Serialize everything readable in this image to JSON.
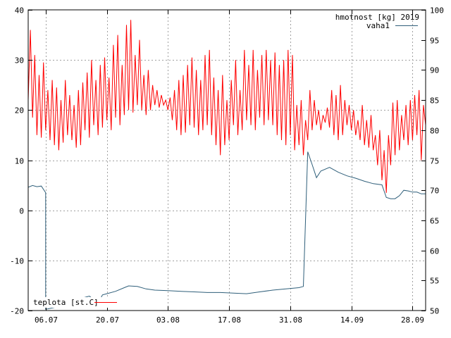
{
  "chart_data": {
    "type": "line",
    "title": "hmotnost [kg] 2019",
    "xlabel": "",
    "ylabel": "",
    "ylim": [
      -20,
      40
    ],
    "y2lim": [
      50,
      100
    ],
    "xlim": [
      "2019-07-02",
      "2019-10-01"
    ],
    "grid": true,
    "legend": [
      "top-right",
      "bottom-left"
    ],
    "colors": {
      "teplota": "#ff0000",
      "vaha1": "#2f5f7a",
      "grid": "#a0a0a0",
      "frame": "#000000"
    },
    "x_ticks": [
      {
        "date": "2019-07-06",
        "label": "06.07"
      },
      {
        "date": "2019-07-20",
        "label": "20.07"
      },
      {
        "date": "2019-08-03",
        "label": "03.08"
      },
      {
        "date": "2019-08-17",
        "label": "17.08"
      },
      {
        "date": "2019-08-31",
        "label": "31.08"
      },
      {
        "date": "2019-09-14",
        "label": "14.09"
      },
      {
        "date": "2019-09-28",
        "label": "28.09"
      }
    ],
    "y_ticks": [
      {
        "value": -20,
        "label": "-20"
      },
      {
        "value": -10,
        "label": "-10"
      },
      {
        "value": 0,
        "label": "0"
      },
      {
        "value": 10,
        "label": "10"
      },
      {
        "value": 20,
        "label": "20"
      },
      {
        "value": 30,
        "label": "30"
      },
      {
        "value": 40,
        "label": "40"
      }
    ],
    "y2_ticks": [
      {
        "value": 50,
        "label": "50"
      },
      {
        "value": 55,
        "label": "55"
      },
      {
        "value": 60,
        "label": "60"
      },
      {
        "value": 65,
        "label": "65"
      },
      {
        "value": 70,
        "label": "70"
      },
      {
        "value": 75,
        "label": "75"
      },
      {
        "value": 80,
        "label": "80"
      },
      {
        "value": 85,
        "label": "85"
      },
      {
        "value": 90,
        "label": "90"
      },
      {
        "value": 95,
        "label": "95"
      },
      {
        "value": 100,
        "label": "100"
      }
    ],
    "series": [
      {
        "name": "vaha1",
        "axis": "right",
        "points": [
          [
            "2019-07-02",
            70.5
          ],
          [
            "2019-07-03",
            70.8
          ],
          [
            "2019-07-04",
            70.6
          ],
          [
            "2019-07-05",
            70.7
          ],
          [
            "2019-07-06",
            69.6
          ],
          [
            "2019-07-06",
            50.2
          ],
          [
            "2019-07-08",
            50.5
          ],
          [
            "2019-07-10",
            51.1
          ],
          [
            "2019-07-12",
            51.6
          ],
          [
            "2019-07-14",
            52.0
          ],
          [
            "2019-07-16",
            52.4
          ],
          [
            "2019-07-18",
            51.2
          ],
          [
            "2019-07-19",
            52.6
          ],
          [
            "2019-07-20",
            52.8
          ],
          [
            "2019-07-22",
            53.2
          ],
          [
            "2019-07-24",
            53.8
          ],
          [
            "2019-07-25",
            54.1
          ],
          [
            "2019-07-27",
            54.0
          ],
          [
            "2019-07-29",
            53.6
          ],
          [
            "2019-07-31",
            53.4
          ],
          [
            "2019-08-03",
            53.3
          ],
          [
            "2019-08-06",
            53.2
          ],
          [
            "2019-08-09",
            53.1
          ],
          [
            "2019-08-12",
            53.0
          ],
          [
            "2019-08-15",
            53.0
          ],
          [
            "2019-08-18",
            52.9
          ],
          [
            "2019-08-21",
            52.8
          ],
          [
            "2019-08-24",
            53.1
          ],
          [
            "2019-08-27",
            53.4
          ],
          [
            "2019-08-30",
            53.6
          ],
          [
            "2019-09-02",
            53.8
          ],
          [
            "2019-09-03",
            54.0
          ],
          [
            "2019-09-04",
            76.4
          ],
          [
            "2019-09-05",
            74.3
          ],
          [
            "2019-09-06",
            72.1
          ],
          [
            "2019-09-07",
            73.2
          ],
          [
            "2019-09-09",
            73.8
          ],
          [
            "2019-09-11",
            73.0
          ],
          [
            "2019-09-13",
            72.4
          ],
          [
            "2019-09-15",
            72.0
          ],
          [
            "2019-09-17",
            71.5
          ],
          [
            "2019-09-19",
            71.1
          ],
          [
            "2019-09-21",
            70.9
          ],
          [
            "2019-09-22",
            68.8
          ],
          [
            "2019-09-23",
            68.6
          ],
          [
            "2019-09-24",
            68.6
          ],
          [
            "2019-09-25",
            69.1
          ],
          [
            "2019-09-26",
            70.0
          ],
          [
            "2019-09-27",
            69.9
          ],
          [
            "2019-09-28",
            69.7
          ],
          [
            "2019-09-29",
            69.7
          ],
          [
            "2019-09-30",
            69.4
          ],
          [
            "2019-10-01",
            69.4
          ]
        ]
      },
      {
        "name": "teplota [st.C]",
        "axis": "left",
        "points": [
          [
            "2019-07-02",
            22.0
          ],
          [
            "2019-07-02 12:00",
            36.0
          ],
          [
            "2019-07-03",
            18.5
          ],
          [
            "2019-07-03 12:00",
            31.0
          ],
          [
            "2019-07-04",
            15.0
          ],
          [
            "2019-07-04 12:00",
            27.0
          ],
          [
            "2019-07-05",
            14.5
          ],
          [
            "2019-07-05 12:00",
            29.5
          ],
          [
            "2019-07-06",
            16.0
          ],
          [
            "2019-07-06 12:00",
            24.0
          ],
          [
            "2019-07-07",
            14.0
          ],
          [
            "2019-07-07 12:00",
            26.0
          ],
          [
            "2019-07-08",
            13.0
          ],
          [
            "2019-07-08 12:00",
            24.5
          ],
          [
            "2019-07-09",
            12.0
          ],
          [
            "2019-07-09 12:00",
            22.0
          ],
          [
            "2019-07-10",
            13.5
          ],
          [
            "2019-07-10 12:00",
            26.0
          ],
          [
            "2019-07-11",
            15.0
          ],
          [
            "2019-07-11 12:00",
            23.0
          ],
          [
            "2019-07-12",
            14.0
          ],
          [
            "2019-07-12 12:00",
            21.0
          ],
          [
            "2019-07-13",
            12.5
          ],
          [
            "2019-07-13 12:00",
            24.0
          ],
          [
            "2019-07-14",
            13.0
          ],
          [
            "2019-07-14 12:00",
            25.5
          ],
          [
            "2019-07-15",
            16.0
          ],
          [
            "2019-07-15 12:00",
            27.5
          ],
          [
            "2019-07-16",
            14.5
          ],
          [
            "2019-07-16 12:00",
            30.0
          ],
          [
            "2019-07-17",
            17.0
          ],
          [
            "2019-07-17 12:00",
            26.0
          ],
          [
            "2019-07-18",
            15.0
          ],
          [
            "2019-07-18 12:00",
            29.0
          ],
          [
            "2019-07-19",
            16.5
          ],
          [
            "2019-07-19 12:00",
            30.5
          ],
          [
            "2019-07-20",
            18.0
          ],
          [
            "2019-07-20 12:00",
            26.5
          ],
          [
            "2019-07-21",
            16.0
          ],
          [
            "2019-07-21 12:00",
            33.0
          ],
          [
            "2019-07-22",
            18.5
          ],
          [
            "2019-07-22 12:00",
            35.0
          ],
          [
            "2019-07-23",
            17.0
          ],
          [
            "2019-07-23 12:00",
            29.0
          ],
          [
            "2019-07-24",
            19.0
          ],
          [
            "2019-07-24 12:00",
            37.0
          ],
          [
            "2019-07-25",
            20.0
          ],
          [
            "2019-07-25 12:00",
            38.0
          ],
          [
            "2019-07-26",
            19.5
          ],
          [
            "2019-07-26 12:00",
            31.0
          ],
          [
            "2019-07-27",
            21.0
          ],
          [
            "2019-07-27 12:00",
            34.0
          ],
          [
            "2019-07-28",
            20.0
          ],
          [
            "2019-07-28 12:00",
            27.0
          ],
          [
            "2019-07-29",
            19.0
          ],
          [
            "2019-07-29 12:00",
            28.0
          ],
          [
            "2019-07-30",
            20.0
          ],
          [
            "2019-07-30 12:00",
            25.0
          ],
          [
            "2019-07-31",
            21.0
          ],
          [
            "2019-07-31 12:00",
            24.0
          ],
          [
            "2019-08-01",
            20.5
          ],
          [
            "2019-08-01 12:00",
            23.0
          ],
          [
            "2019-08-02",
            21.0
          ],
          [
            "2019-08-02 12:00",
            22.0
          ],
          [
            "2019-08-03",
            20.0
          ],
          [
            "2019-08-03 12:00",
            22.5
          ],
          [
            "2019-08-04",
            18.0
          ],
          [
            "2019-08-04 12:00",
            24.0
          ],
          [
            "2019-08-05",
            16.0
          ],
          [
            "2019-08-05 12:00",
            26.0
          ],
          [
            "2019-08-06",
            15.0
          ],
          [
            "2019-08-06 12:00",
            27.0
          ],
          [
            "2019-08-07",
            15.5
          ],
          [
            "2019-08-07 12:00",
            29.0
          ],
          [
            "2019-08-08",
            17.0
          ],
          [
            "2019-08-08 12:00",
            30.5
          ],
          [
            "2019-08-09",
            16.5
          ],
          [
            "2019-08-09 12:00",
            28.0
          ],
          [
            "2019-08-10",
            15.0
          ],
          [
            "2019-08-10 12:00",
            26.0
          ],
          [
            "2019-08-11",
            16.0
          ],
          [
            "2019-08-11 12:00",
            31.0
          ],
          [
            "2019-08-12",
            17.0
          ],
          [
            "2019-08-12 12:00",
            32.0
          ],
          [
            "2019-08-13",
            15.0
          ],
          [
            "2019-08-13 12:00",
            26.5
          ],
          [
            "2019-08-14",
            13.0
          ],
          [
            "2019-08-14 12:00",
            24.0
          ],
          [
            "2019-08-15",
            11.0
          ],
          [
            "2019-08-15 12:00",
            27.0
          ],
          [
            "2019-08-16",
            13.0
          ],
          [
            "2019-08-16 12:00",
            22.0
          ],
          [
            "2019-08-17",
            14.0
          ],
          [
            "2019-08-17 12:00",
            26.0
          ],
          [
            "2019-08-18",
            17.0
          ],
          [
            "2019-08-18 12:00",
            30.0
          ],
          [
            "2019-08-19",
            15.0
          ],
          [
            "2019-08-19 12:00",
            24.0
          ],
          [
            "2019-08-20",
            16.0
          ],
          [
            "2019-08-20 12:00",
            32.0
          ],
          [
            "2019-08-21",
            18.0
          ],
          [
            "2019-08-21 12:00",
            29.0
          ],
          [
            "2019-08-22",
            17.0
          ],
          [
            "2019-08-22 12:00",
            32.0
          ],
          [
            "2019-08-23",
            16.0
          ],
          [
            "2019-08-23 12:00",
            28.0
          ],
          [
            "2019-08-24",
            18.5
          ],
          [
            "2019-08-24 12:00",
            31.0
          ],
          [
            "2019-08-25",
            17.0
          ],
          [
            "2019-08-25 12:00",
            32.0
          ],
          [
            "2019-08-26",
            18.0
          ],
          [
            "2019-08-26 12:00",
            30.0
          ],
          [
            "2019-08-27",
            17.0
          ],
          [
            "2019-08-27 12:00",
            31.5
          ],
          [
            "2019-08-28",
            15.0
          ],
          [
            "2019-08-28 12:00",
            29.0
          ],
          [
            "2019-08-29",
            14.0
          ],
          [
            "2019-08-29 12:00",
            30.0
          ],
          [
            "2019-08-30",
            13.0
          ],
          [
            "2019-08-30 12:00",
            32.0
          ],
          [
            "2019-08-31",
            15.0
          ],
          [
            "2019-08-31 12:00",
            31.0
          ],
          [
            "2019-09-01",
            12.0
          ],
          [
            "2019-09-01 12:00",
            21.0
          ],
          [
            "2019-09-02",
            13.0
          ],
          [
            "2019-09-02 12:00",
            22.0
          ],
          [
            "2019-09-03",
            11.0
          ],
          [
            "2019-09-03 12:00",
            18.0
          ],
          [
            "2019-09-04",
            14.0
          ],
          [
            "2019-09-04 12:00",
            24.0
          ],
          [
            "2019-09-05",
            16.0
          ],
          [
            "2019-09-05 12:00",
            22.0
          ],
          [
            "2019-09-06",
            17.0
          ],
          [
            "2019-09-06 12:00",
            20.0
          ],
          [
            "2019-09-07",
            16.0
          ],
          [
            "2019-09-07 12:00",
            19.0
          ],
          [
            "2019-09-08",
            17.5
          ],
          [
            "2019-09-08 12:00",
            20.5
          ],
          [
            "2019-09-09",
            16.5
          ],
          [
            "2019-09-09 12:00",
            24.0
          ],
          [
            "2019-09-10",
            15.0
          ],
          [
            "2019-09-10 12:00",
            23.0
          ],
          [
            "2019-09-11",
            14.0
          ],
          [
            "2019-09-11 12:00",
            25.0
          ],
          [
            "2019-09-12",
            15.0
          ],
          [
            "2019-09-12 12:00",
            22.0
          ],
          [
            "2019-09-13",
            17.0
          ],
          [
            "2019-09-13 12:00",
            21.0
          ],
          [
            "2019-09-14",
            16.0
          ],
          [
            "2019-09-14 12:00",
            20.0
          ],
          [
            "2019-09-15",
            15.0
          ],
          [
            "2019-09-15 12:00",
            18.0
          ],
          [
            "2019-09-16",
            14.0
          ],
          [
            "2019-09-16 12:00",
            21.0
          ],
          [
            "2019-09-17",
            13.0
          ],
          [
            "2019-09-17 12:00",
            18.0
          ],
          [
            "2019-09-18",
            12.5
          ],
          [
            "2019-09-18 12:00",
            19.0
          ],
          [
            "2019-09-19",
            12.0
          ],
          [
            "2019-09-19 12:00",
            15.0
          ],
          [
            "2019-09-20",
            9.0
          ],
          [
            "2019-09-20 12:00",
            16.0
          ],
          [
            "2019-09-21",
            6.0
          ],
          [
            "2019-09-21 12:00",
            12.0
          ],
          [
            "2019-09-22",
            3.5
          ],
          [
            "2019-09-22 12:00",
            15.0
          ],
          [
            "2019-09-23",
            9.0
          ],
          [
            "2019-09-23 12:00",
            21.5
          ],
          [
            "2019-09-24",
            11.0
          ],
          [
            "2019-09-24 12:00",
            22.0
          ],
          [
            "2019-09-25",
            12.0
          ],
          [
            "2019-09-25 12:00",
            19.0
          ],
          [
            "2019-09-26",
            14.0
          ],
          [
            "2019-09-26 12:00",
            21.0
          ],
          [
            "2019-09-27",
            13.0
          ],
          [
            "2019-09-27 12:00",
            22.0
          ],
          [
            "2019-09-28",
            14.0
          ],
          [
            "2019-09-28 12:00",
            23.0
          ],
          [
            "2019-09-29",
            15.0
          ],
          [
            "2019-09-29 12:00",
            24.0
          ],
          [
            "2019-09-30",
            10.0
          ],
          [
            "2019-09-30 12:00",
            21.0
          ],
          [
            "2019-10-01",
            17.0
          ]
        ]
      }
    ]
  }
}
